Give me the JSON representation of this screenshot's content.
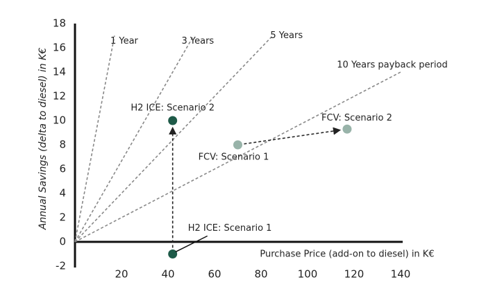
{
  "chart_data": {
    "type": "scatter",
    "xlabel": "Purchase Price (add-on to diesel) in K€",
    "ylabel": "Annual Savings (delta to diesel) in K€",
    "xlim": [
      0,
      140
    ],
    "ylim": [
      -2,
      18
    ],
    "xticks": [
      20,
      40,
      60,
      80,
      100,
      120,
      140
    ],
    "yticks": [
      -2,
      0,
      2,
      4,
      6,
      8,
      10,
      12,
      14,
      16,
      18
    ],
    "payback_lines": [
      {
        "name": "1 Year",
        "x": [
          0,
          17
        ],
        "values": [
          0,
          17
        ]
      },
      {
        "name": "3 Years",
        "x": [
          0,
          51
        ],
        "values": [
          0,
          17
        ]
      },
      {
        "name": "5 Years",
        "x": [
          0,
          85
        ],
        "values": [
          0,
          17
        ]
      },
      {
        "name": "10 Years payback period",
        "x": [
          0,
          140
        ],
        "values": [
          0,
          14
        ]
      }
    ],
    "series": [
      {
        "name": "H2 ICE: Scenario 1",
        "color": "#1e5a48",
        "x": [
          42
        ],
        "values": [
          -1
        ]
      },
      {
        "name": "H2 ICE: Scenario 2",
        "color": "#1e5a48",
        "x": [
          42
        ],
        "values": [
          10
        ]
      },
      {
        "name": "FCV: Scenario 1",
        "color": "#98b3a9",
        "x": [
          70
        ],
        "values": [
          8
        ]
      },
      {
        "name": "FCV: Scenario 2",
        "color": "#98b3a9",
        "x": [
          117
        ],
        "values": [
          9.3
        ]
      }
    ]
  }
}
